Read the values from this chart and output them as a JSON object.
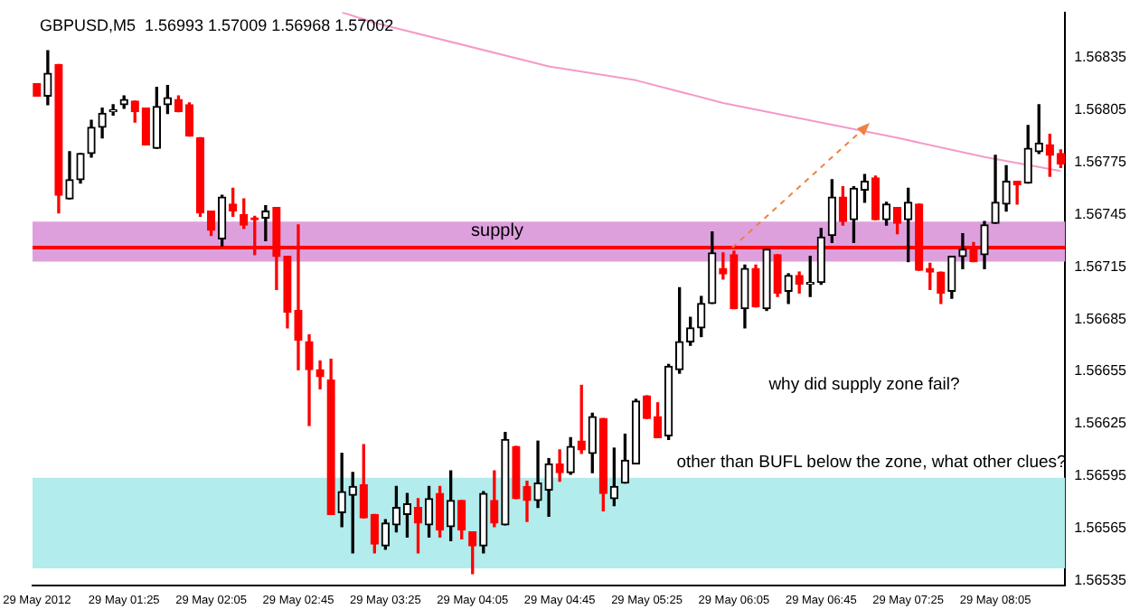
{
  "chart_data": {
    "type": "candlestick",
    "title": "GBPUSD,M5  1.56993 1.57009 1.56968 1.57002",
    "x": [
      "2012-05-29T00:45",
      "2012-05-29T00:50",
      "2012-05-29T00:55",
      "2012-05-29T01:00",
      "2012-05-29T01:05",
      "2012-05-29T01:10",
      "2012-05-29T01:15",
      "2012-05-29T01:20",
      "2012-05-29T01:25",
      "2012-05-29T01:30",
      "2012-05-29T01:35",
      "2012-05-29T01:40",
      "2012-05-29T01:45",
      "2012-05-29T01:50",
      "2012-05-29T01:55",
      "2012-05-29T02:00",
      "2012-05-29T02:05",
      "2012-05-29T02:10",
      "2012-05-29T02:15",
      "2012-05-29T02:20",
      "2012-05-29T02:25",
      "2012-05-29T02:30",
      "2012-05-29T02:35",
      "2012-05-29T02:40",
      "2012-05-29T02:45",
      "2012-05-29T02:50",
      "2012-05-29T02:55",
      "2012-05-29T03:00",
      "2012-05-29T03:05",
      "2012-05-29T03:10",
      "2012-05-29T03:15",
      "2012-05-29T03:20",
      "2012-05-29T03:25",
      "2012-05-29T03:30",
      "2012-05-29T03:35",
      "2012-05-29T03:40",
      "2012-05-29T03:45",
      "2012-05-29T03:50",
      "2012-05-29T03:55",
      "2012-05-29T04:00",
      "2012-05-29T04:05",
      "2012-05-29T04:10",
      "2012-05-29T04:15",
      "2012-05-29T04:20",
      "2012-05-29T04:25",
      "2012-05-29T04:30",
      "2012-05-29T04:35",
      "2012-05-29T04:40",
      "2012-05-29T04:45",
      "2012-05-29T04:50",
      "2012-05-29T04:55",
      "2012-05-29T05:00",
      "2012-05-29T05:05",
      "2012-05-29T05:10",
      "2012-05-29T05:15",
      "2012-05-29T05:20",
      "2012-05-29T05:25",
      "2012-05-29T05:30",
      "2012-05-29T05:35",
      "2012-05-29T05:40",
      "2012-05-29T05:45",
      "2012-05-29T05:50",
      "2012-05-29T05:55",
      "2012-05-29T06:00",
      "2012-05-29T06:05",
      "2012-05-29T06:10",
      "2012-05-29T06:15",
      "2012-05-29T06:20",
      "2012-05-29T06:25",
      "2012-05-29T06:30",
      "2012-05-29T06:35",
      "2012-05-29T06:40",
      "2012-05-29T06:45",
      "2012-05-29T06:50",
      "2012-05-29T06:55",
      "2012-05-29T07:00",
      "2012-05-29T07:05",
      "2012-05-29T07:10",
      "2012-05-29T07:15",
      "2012-05-29T07:20",
      "2012-05-29T07:25",
      "2012-05-29T07:30",
      "2012-05-29T07:35",
      "2012-05-29T07:40",
      "2012-05-29T07:45",
      "2012-05-29T07:50",
      "2012-05-29T07:55",
      "2012-05-29T08:00",
      "2012-05-29T08:05",
      "2012-05-29T08:10",
      "2012-05-29T08:15",
      "2012-05-29T08:20",
      "2012-05-29T08:25",
      "2012-05-29T08:30",
      "2012-05-29T08:35"
    ],
    "ohlc": [
      [
        1.5682,
        1.5682,
        1.56813,
        1.56813
      ],
      [
        1.56813,
        1.56839,
        1.56808,
        1.56826
      ],
      [
        1.56831,
        1.56831,
        1.56746,
        1.56756
      ],
      [
        1.56754,
        1.56781,
        1.56754,
        1.56765
      ],
      [
        1.56765,
        1.5678,
        1.56763,
        1.5678
      ],
      [
        1.5678,
        1.56799,
        1.56778,
        1.56795
      ],
      [
        1.56795,
        1.56806,
        1.56789,
        1.56803
      ],
      [
        1.56804,
        1.56808,
        1.56802,
        1.56805
      ],
      [
        1.56808,
        1.56813,
        1.56806,
        1.56811
      ],
      [
        1.5681,
        1.5681,
        1.56798,
        1.56804
      ],
      [
        1.56806,
        1.56806,
        1.56785,
        1.56785
      ],
      [
        1.56783,
        1.56818,
        1.56783,
        1.56807
      ],
      [
        1.56808,
        1.56819,
        1.56803,
        1.56812
      ],
      [
        1.56811,
        1.56813,
        1.56804,
        1.56804
      ],
      [
        1.56808,
        1.56809,
        1.5679,
        1.5679
      ],
      [
        1.56789,
        1.56789,
        1.56744,
        1.56746
      ],
      [
        1.56747,
        1.56747,
        1.56733,
        1.56736
      ],
      [
        1.56731,
        1.56756,
        1.56727,
        1.56755
      ],
      [
        1.56751,
        1.5676,
        1.56744,
        1.56747
      ],
      [
        1.56745,
        1.56754,
        1.56737,
        1.56739
      ],
      [
        1.56743,
        1.56744,
        1.56722,
        1.56742
      ],
      [
        1.56743,
        1.5675,
        1.5673,
        1.56747
      ],
      [
        1.56749,
        1.56749,
        1.56702,
        1.56721
      ],
      [
        1.56721,
        1.56721,
        1.5668,
        1.56689
      ],
      [
        1.5669,
        1.56739,
        1.56656,
        1.56673
      ],
      [
        1.56672,
        1.56676,
        1.56624,
        1.56656
      ],
      [
        1.56656,
        1.56661,
        1.56645,
        1.56652
      ],
      [
        1.5665,
        1.56662,
        1.56573,
        1.56573
      ],
      [
        1.56574,
        1.56608,
        1.56566,
        1.56586
      ],
      [
        1.56584,
        1.56597,
        1.56551,
        1.56589
      ],
      [
        1.5659,
        1.56613,
        1.56571,
        1.56571
      ],
      [
        1.56573,
        1.56573,
        1.56551,
        1.56556
      ],
      [
        1.56555,
        1.5657,
        1.56553,
        1.56568
      ],
      [
        1.56567,
        1.56589,
        1.56563,
        1.56577
      ],
      [
        1.56573,
        1.56585,
        1.5656,
        1.56579
      ],
      [
        1.56577,
        1.56582,
        1.56551,
        1.56568
      ],
      [
        1.56567,
        1.56589,
        1.5656,
        1.56582
      ],
      [
        1.56585,
        1.56589,
        1.5656,
        1.56564
      ],
      [
        1.56566,
        1.56598,
        1.56558,
        1.56581
      ],
      [
        1.56581,
        1.56581,
        1.56559,
        1.56564
      ],
      [
        1.56563,
        1.56563,
        1.56539,
        1.56555
      ],
      [
        1.56555,
        1.56586,
        1.56551,
        1.56585
      ],
      [
        1.56581,
        1.56598,
        1.56566,
        1.56568
      ],
      [
        1.56567,
        1.5662,
        1.56567,
        1.56616
      ],
      [
        1.56612,
        1.56612,
        1.56582,
        1.56582
      ],
      [
        1.56589,
        1.56592,
        1.56569,
        1.56581
      ],
      [
        1.56581,
        1.56615,
        1.56577,
        1.56591
      ],
      [
        1.56587,
        1.56605,
        1.56572,
        1.56602
      ],
      [
        1.56602,
        1.5661,
        1.56592,
        1.56597
      ],
      [
        1.56597,
        1.56617,
        1.56596,
        1.56612
      ],
      [
        1.56615,
        1.56647,
        1.56608,
        1.5661
      ],
      [
        1.56608,
        1.56631,
        1.56597,
        1.56629
      ],
      [
        1.56628,
        1.56628,
        1.56575,
        1.56585
      ],
      [
        1.56582,
        1.56611,
        1.56578,
        1.56589
      ],
      [
        1.56591,
        1.56619,
        1.56591,
        1.56604
      ],
      [
        1.56602,
        1.56639,
        1.56602,
        1.56638
      ],
      [
        1.56641,
        1.56641,
        1.56628,
        1.56628
      ],
      [
        1.56629,
        1.56637,
        1.56617,
        1.56617
      ],
      [
        1.56618,
        1.56659,
        1.56616,
        1.56658
      ],
      [
        1.56656,
        1.56703,
        1.56654,
        1.56672
      ],
      [
        1.56672,
        1.56686,
        1.5667,
        1.5668
      ],
      [
        1.5668,
        1.56698,
        1.56675,
        1.56694
      ],
      [
        1.56694,
        1.56735,
        1.56694,
        1.56723
      ],
      [
        1.56714,
        1.56723,
        1.56708,
        1.56711
      ],
      [
        1.56722,
        1.56724,
        1.56691,
        1.56691
      ],
      [
        1.56691,
        1.56716,
        1.5668,
        1.56714
      ],
      [
        1.56714,
        1.56716,
        1.56692,
        1.56692
      ],
      [
        1.56691,
        1.56725,
        1.5669,
        1.56725
      ],
      [
        1.56722,
        1.56722,
        1.56698,
        1.567
      ],
      [
        1.56701,
        1.56711,
        1.56694,
        1.5671
      ],
      [
        1.5671,
        1.56712,
        1.567,
        1.56705
      ],
      [
        1.56705,
        1.56721,
        1.56698,
        1.56706
      ],
      [
        1.56706,
        1.56737,
        1.56705,
        1.56732
      ],
      [
        1.56733,
        1.56765,
        1.56729,
        1.56755
      ],
      [
        1.56755,
        1.56761,
        1.56739,
        1.56741
      ],
      [
        1.56742,
        1.56761,
        1.56729,
        1.5676
      ],
      [
        1.56759,
        1.56768,
        1.56752,
        1.56764
      ],
      [
        1.56766,
        1.56767,
        1.56742,
        1.56742
      ],
      [
        1.56742,
        1.56752,
        1.56739,
        1.56751
      ],
      [
        1.56749,
        1.56749,
        1.56734,
        1.5674
      ],
      [
        1.56742,
        1.5676,
        1.56718,
        1.56752
      ],
      [
        1.56751,
        1.56751,
        1.56713,
        1.56713
      ],
      [
        1.56714,
        1.56717,
        1.56702,
        1.56712
      ],
      [
        1.56712,
        1.56712,
        1.56694,
        1.567
      ],
      [
        1.56701,
        1.56721,
        1.56697,
        1.56721
      ],
      [
        1.56721,
        1.56734,
        1.56714,
        1.56725
      ],
      [
        1.56725,
        1.56729,
        1.56718,
        1.56718
      ],
      [
        1.56722,
        1.56741,
        1.56714,
        1.56739
      ],
      [
        1.5674,
        1.56779,
        1.5674,
        1.56752
      ],
      [
        1.56751,
        1.56773,
        1.56747,
        1.56764
      ],
      [
        1.56764,
        1.56764,
        1.56751,
        1.56762
      ],
      [
        1.56763,
        1.56796,
        1.56763,
        1.56783
      ],
      [
        1.56781,
        1.56808,
        1.5678,
        1.56786
      ],
      [
        1.56785,
        1.56791,
        1.56767,
        1.56779
      ],
      [
        1.5678,
        1.56782,
        1.56772,
        1.56774
      ]
    ],
    "series": [
      {
        "type": "line",
        "color": "#f49ac8",
        "x": [
          "2012-05-29T03:05",
          "2012-05-29T03:20",
          "2012-05-29T04:40",
          "2012-05-29T05:20",
          "2012-05-29T06:00",
          "2012-05-29T06:40",
          "2012-05-29T07:20",
          "2012-05-29T08:00",
          "2012-05-29T08:35"
        ],
        "values": [
          1.56861,
          1.56855,
          1.5683,
          1.56822,
          1.56809,
          1.56799,
          1.56789,
          1.56778,
          1.5677
        ]
      }
    ],
    "xlim": [
      "2012-05-29T00:43",
      "2012-05-29T08:37"
    ],
    "xticks": [
      {
        "value": "2012-05-29T00:45",
        "label": "29 May 2012"
      },
      {
        "value": "2012-05-29T01:25",
        "label": "29 May 01:25"
      },
      {
        "value": "2012-05-29T02:05",
        "label": "29 May 02:05"
      },
      {
        "value": "2012-05-29T02:45",
        "label": "29 May 02:45"
      },
      {
        "value": "2012-05-29T03:25",
        "label": "29 May 03:25"
      },
      {
        "value": "2012-05-29T04:05",
        "label": "29 May 04:05"
      },
      {
        "value": "2012-05-29T04:45",
        "label": "29 May 04:45"
      },
      {
        "value": "2012-05-29T05:25",
        "label": "29 May 05:25"
      },
      {
        "value": "2012-05-29T06:05",
        "label": "29 May 06:05"
      },
      {
        "value": "2012-05-29T06:45",
        "label": "29 May 06:45"
      },
      {
        "value": "2012-05-29T07:25",
        "label": "29 May 07:25"
      },
      {
        "value": "2012-05-29T08:05",
        "label": "29 May 08:05"
      }
    ],
    "ylim": [
      1.56532,
      1.56861
    ],
    "yticks": [
      1.56535,
      1.56565,
      1.56595,
      1.56625,
      1.56655,
      1.56685,
      1.56715,
      1.56745,
      1.56775,
      1.56805,
      1.56835
    ],
    "bands": [
      {
        "axis": "y",
        "from": 1.56718,
        "to": 1.56741,
        "label": "supply",
        "color": "#dda0dd"
      },
      {
        "axis": "y",
        "from": 1.56542,
        "to": 1.56594,
        "color": "#b2ecec"
      }
    ],
    "ref_lines": [
      {
        "axis": "y",
        "value": 1.56726,
        "color": "#ff0000"
      }
    ],
    "annotations": [
      "why did supply zone fail?",
      "other than BUFL below the zone, what other clues?"
    ],
    "grid": false,
    "legend": false
  }
}
